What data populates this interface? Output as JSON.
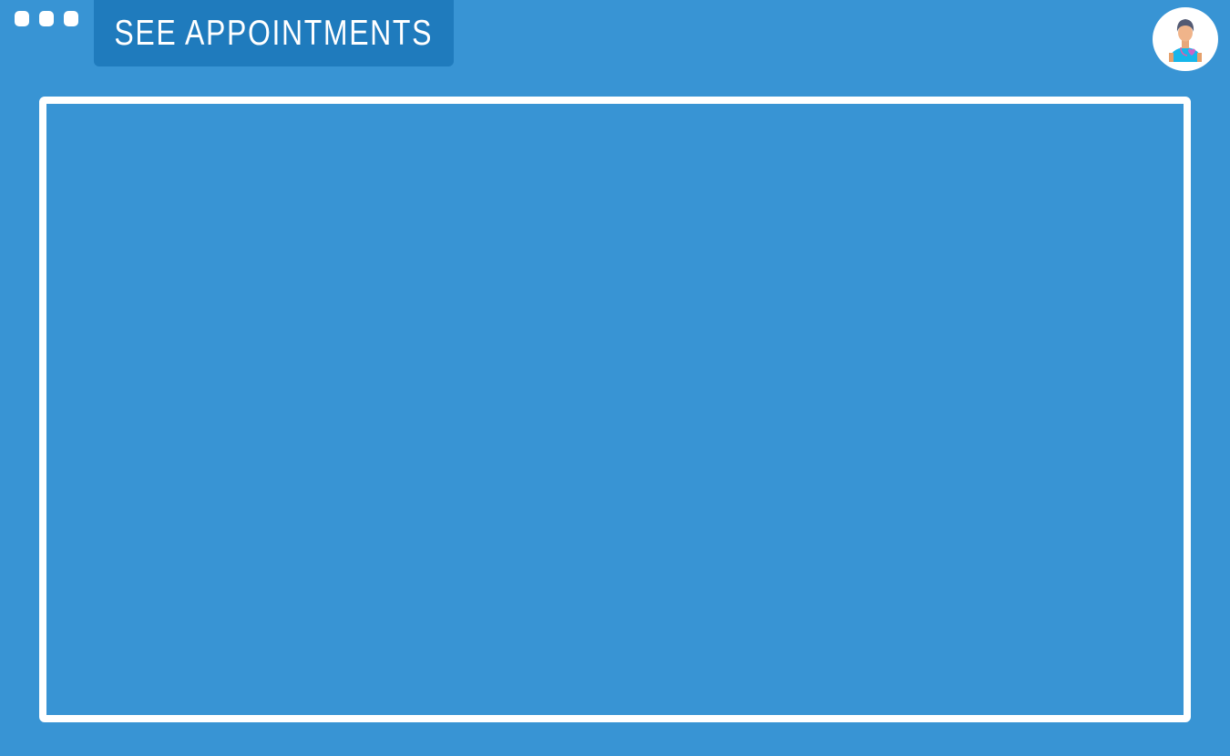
{
  "header": {
    "tab_label": "SEE APPOINTMENTS",
    "window_controls": [
      "dot",
      "dot",
      "dot"
    ],
    "avatar_icon": "doctor-avatar-icon"
  },
  "colors": {
    "background": "#3894d4",
    "tab": "#1f7bbd",
    "frame": "#ffffff"
  }
}
